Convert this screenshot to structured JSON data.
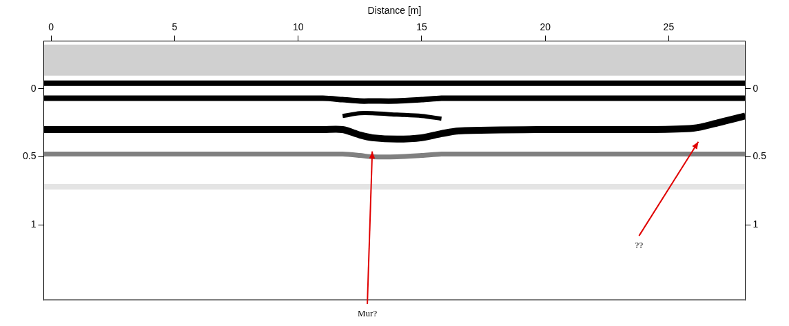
{
  "chart_data": {
    "type": "line",
    "xlabel": "Distance [m]",
    "x": [
      -0.3,
      4,
      8,
      11,
      11.8,
      12.5,
      13,
      14,
      15,
      15.8,
      16.5,
      20,
      24,
      26,
      27,
      28.1
    ],
    "series": [
      {
        "color": "#d0d0d0",
        "values": [
          -0.21,
          -0.21,
          -0.21,
          -0.21,
          -0.21,
          -0.21,
          -0.21,
          -0.21,
          -0.21,
          -0.21,
          -0.21,
          -0.21,
          -0.21,
          -0.21,
          -0.21,
          -0.21
        ]
      },
      {
        "color": "#000000",
        "values": [
          -0.04,
          -0.04,
          -0.04,
          -0.04,
          -0.04,
          -0.04,
          -0.04,
          -0.04,
          -0.04,
          -0.04,
          -0.04,
          -0.04,
          -0.04,
          -0.04,
          -0.04,
          -0.04
        ]
      },
      {
        "color": "#000000",
        "values": [
          0.07,
          0.07,
          0.07,
          0.07,
          0.08,
          0.09,
          0.09,
          0.09,
          0.08,
          0.07,
          0.07,
          0.07,
          0.07,
          0.07,
          0.07,
          0.07
        ]
      },
      {
        "color": "#000000",
        "values": [
          0.3,
          0.3,
          0.3,
          0.3,
          0.3,
          0.34,
          0.36,
          0.37,
          0.36,
          0.33,
          0.31,
          0.3,
          0.3,
          0.29,
          0.25,
          0.2
        ]
      },
      {
        "color": "#000000",
        "values": [
          null,
          null,
          null,
          null,
          0.2,
          0.18,
          0.18,
          0.19,
          0.2,
          0.22,
          null,
          null,
          null,
          null,
          null,
          null
        ]
      },
      {
        "color": "#808080",
        "values": [
          0.48,
          0.48,
          0.48,
          0.48,
          0.48,
          0.49,
          0.5,
          0.5,
          0.49,
          0.48,
          0.48,
          0.48,
          0.48,
          0.48,
          0.48,
          0.48
        ]
      },
      {
        "color": "#e4e4e4",
        "values": [
          0.72,
          0.72,
          0.72,
          0.72,
          0.72,
          0.72,
          0.72,
          0.72,
          0.72,
          0.72,
          0.72,
          0.72,
          0.72,
          0.72,
          0.72,
          0.72
        ]
      }
    ],
    "xlim": [
      -0.3,
      28.1
    ],
    "xticks": [
      0,
      5,
      10,
      15,
      20,
      25
    ],
    "ylim": [
      1.55,
      -0.35
    ],
    "yticks": [
      0,
      0.5,
      1
    ],
    "y2lim": [
      1.55,
      -0.35
    ],
    "y2ticks": [
      0,
      0.5,
      1
    ],
    "grid": false,
    "annotations": [
      {
        "text": "Mur?",
        "x": 13.0,
        "y": 0.46,
        "text_x": 12.8,
        "text_y": 1.58,
        "color": "#e00000"
      },
      {
        "text": "??",
        "x": 26.2,
        "y": 0.39,
        "text_x": 23.8,
        "text_y": 1.08,
        "color": "#e00000"
      }
    ]
  }
}
